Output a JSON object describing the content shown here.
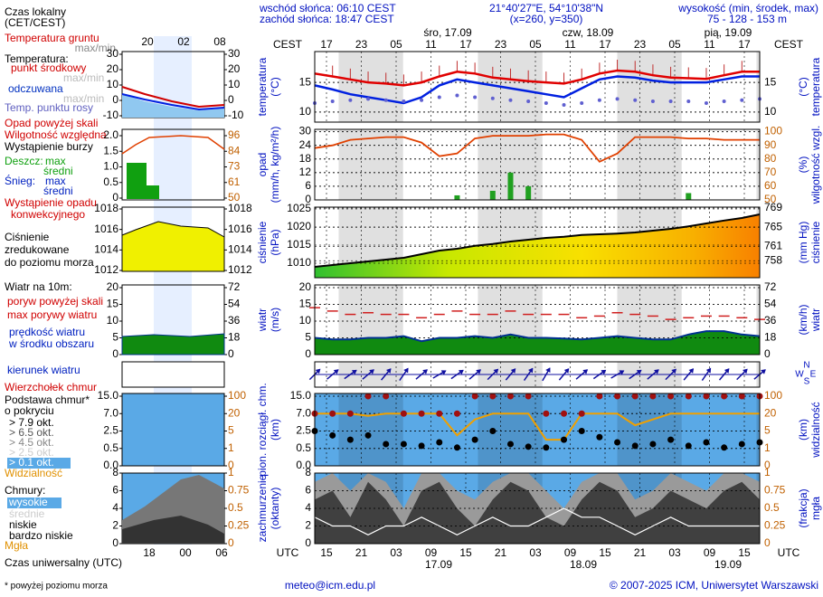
{
  "header": {
    "sunrise": "wschód słońca: 06:10 CEST",
    "sunset": "zachód słońca: 18:47 CEST",
    "coords": "21°40'27\"E, 54°10'38\"N",
    "grid_point": "(x=260,  y=350)",
    "elevation_title": "wysokość (min, środek, max)",
    "elevation": "75 - 128 - 153 m"
  },
  "time": {
    "local_label": "CEST",
    "utc_label": "UTC",
    "local_ticks": [
      "17",
      "23",
      "05",
      "11",
      "17",
      "23",
      "05",
      "11",
      "17",
      "23",
      "05",
      "11",
      "17"
    ],
    "utc_ticks": [
      "15",
      "21",
      "03",
      "09",
      "15",
      "21",
      "03",
      "09",
      "15",
      "21",
      "03",
      "09",
      "15"
    ],
    "local_dates": [
      "śro, 17.09",
      "czw, 18.09",
      "pią, 19.09"
    ],
    "utc_dates": [
      "17.09",
      "18.09",
      "19.09"
    ]
  },
  "legend": [
    "Czas lokalny",
    "(CET/CEST)",
    "Temperatura gruntu",
    "max/min",
    "Temperatura:",
    "punkt środkowy",
    "max/min",
    "odczuwana",
    "max/min",
    "Temp. punktu rosy",
    "Opad powyżej skali",
    "Wilgotność względna",
    "Wystąpienie burzy",
    "Deszcz:",
    "max",
    "średni",
    "Śnieg:",
    "max",
    "średni",
    "Wystąpienie opadu",
    "konwekcyjnego",
    "Ciśnienie",
    "zredukowane",
    "do poziomu morza",
    "Wiatr na 10m:",
    "poryw powyżej skali",
    "max porywy wiatru",
    "prędkość wiatru",
    "w środku obszaru",
    "kierunek wiatru",
    "Wierzchołek chmur",
    "Podstawa chmur*",
    "o pokryciu",
    "> 7.9 okt.",
    "> 6.5 okt.",
    "> 4.5 okt.",
    "> 2.5 okt.",
    "> 0.1 okt.",
    "Widzialność",
    "Chmury:",
    "wysokie",
    "średnie",
    "niskie",
    "bardzo niskie",
    "Mgła",
    "Czas uniwersalny (UTC)"
  ],
  "mini": {
    "local_ticks": [
      "20",
      "02",
      "08"
    ],
    "utc_ticks": [
      "18",
      "00",
      "06"
    ],
    "axes": {
      "temperature": {
        "left": [
          30,
          20,
          10,
          0,
          -10
        ],
        "right": [
          30,
          20,
          10,
          0,
          -10
        ]
      },
      "precipitation": {
        "left": [
          {
            "value": 2,
            "label": "2.0"
          },
          1.5,
          {
            "value": 1,
            "label": "1.0"
          },
          0.5,
          0
        ],
        "right": [
          96,
          84,
          73,
          61,
          50
        ]
      },
      "pressure": {
        "left": [
          1018,
          1016,
          1014,
          1012
        ],
        "right": [
          1018,
          1016,
          1014,
          1012
        ]
      },
      "wind": {
        "left": [
          20,
          15,
          10,
          5,
          0
        ],
        "right": [
          72,
          54,
          36,
          18,
          0
        ]
      },
      "cloud_height": {
        "left": [
          {
            "value": 15,
            "label": "15.0"
          },
          {
            "value": 7,
            "label": "7.0"
          },
          2.5,
          0.5,
          {
            "value": 0,
            "label": "0.0"
          }
        ],
        "right": [
          100,
          20,
          5,
          1,
          0
        ]
      },
      "cloud_cover": {
        "left": [
          8,
          6,
          4,
          2,
          0
        ],
        "right": [
          1,
          0.75,
          0.5,
          0.25,
          0
        ]
      }
    }
  },
  "panels": {
    "temperature": {
      "title": "temperatura",
      "unit": "(°C)",
      "ylim": [
        8.3,
        20.2
      ],
      "yticks": [
        10,
        15
      ],
      "y2ticks": [
        10,
        15
      ],
      "lines": {
        "max": {
          "color": "#e00000",
          "values": [
            16.5,
            16,
            15.5,
            15,
            14.8,
            14.5,
            15,
            16,
            16.8,
            16.5,
            15.8,
            15.5,
            15.2,
            15,
            14.8,
            15.5,
            16.5,
            17,
            16.8,
            16.2,
            15.8,
            15.7,
            15.6,
            16.2,
            16.8,
            16.8
          ]
        },
        "mean": {
          "color": "#0020e0",
          "values": [
            14.5,
            13.8,
            13,
            12.5,
            12,
            11.5,
            12.5,
            14.5,
            15.5,
            15,
            14.5,
            14,
            13.5,
            13,
            12.5,
            14,
            15.5,
            16,
            15.8,
            15.3,
            15,
            15,
            15,
            15.5,
            16,
            16
          ]
        },
        "dew_point": {
          "color": "#6060d0",
          "values": [
            11.5,
            11.8,
            12,
            12.2,
            12,
            11.8,
            12,
            12.5,
            12.8,
            12.5,
            12.3,
            12,
            11.8,
            11.5,
            11.2,
            11.5,
            12,
            12.2,
            12,
            11.8,
            11.8,
            11.8,
            11.5,
            11.8,
            12,
            12.2
          ]
        }
      }
    },
    "precipitation": {
      "title": "opad",
      "unit": "(mm/h, kg/m²/h)",
      "title2": "wilgotność wzgl.",
      "unit2": "(%)",
      "ylim": [
        0,
        31
      ],
      "yticks": [
        0,
        6,
        12,
        18,
        24,
        30
      ],
      "y2lim": [
        50,
        101.7
      ],
      "y2ticks": [
        50,
        60,
        70,
        80,
        90,
        100
      ],
      "bars": {
        "color": "#20a020",
        "values": [
          0,
          0,
          0,
          0,
          0,
          0,
          0,
          0,
          2,
          0,
          4,
          12,
          6,
          0,
          0,
          0,
          0,
          0,
          0,
          0,
          0,
          3,
          0,
          0,
          0,
          0
        ]
      },
      "humidity": {
        "color": "#e04000",
        "values": [
          88,
          90,
          94,
          95,
          96,
          96,
          92,
          82,
          84,
          95,
          97,
          97,
          97,
          98,
          98,
          94,
          78,
          84,
          96,
          96,
          96,
          95,
          95,
          94,
          94,
          94
        ]
      }
    },
    "pressure": {
      "title": "ciśnienie",
      "unit": "(hPa)",
      "title2": "ciśnienie",
      "unit2": "(mm Hg)",
      "ylim": [
        1006,
        1025.5
      ],
      "yticks": [
        1010,
        1015,
        1020,
        1025
      ],
      "y2lim": [
        754.5,
        769.2
      ],
      "y2ticks": [
        758,
        761,
        765,
        769
      ],
      "line": {
        "color": "#000000",
        "values": [
          1009,
          1009.5,
          1010,
          1010.5,
          1011,
          1011.5,
          1012.5,
          1013.5,
          1014,
          1014.8,
          1015.3,
          1016,
          1016.5,
          1017,
          1017.3,
          1017.8,
          1018,
          1018.2,
          1018.5,
          1019,
          1019.5,
          1020.2,
          1021,
          1021.8,
          1022.5,
          1023.5
        ]
      }
    },
    "wind": {
      "title": "wiatr",
      "unit": "(m/s)",
      "title2": "wiatr",
      "unit2": "(km/h)",
      "ylim": [
        0,
        20.8
      ],
      "yticks": [
        0,
        5,
        10,
        15,
        20
      ],
      "y2lim": [
        0,
        74.9
      ],
      "y2ticks": [
        0,
        18,
        36,
        54,
        72
      ],
      "speed": {
        "color": "#003090",
        "fill": "#108a10",
        "values": [
          5,
          4.5,
          4.5,
          5,
          5,
          5.5,
          4,
          5,
          5,
          5.5,
          5,
          6,
          5,
          5,
          4.8,
          4.5,
          5,
          5.5,
          5,
          4.5,
          4.5,
          6,
          7,
          7,
          6,
          5.5
        ]
      },
      "gust": {
        "color": "#d02020",
        "values": [
          14,
          13,
          12,
          12.5,
          12,
          12,
          11,
          12,
          13,
          12,
          12,
          13,
          12,
          12,
          12,
          11,
          11.5,
          12.5,
          12,
          11.5,
          10.5,
          11,
          11.5,
          11.5,
          11,
          10.5
        ]
      }
    },
    "direction": {
      "compass": [
        "N",
        "W",
        "S",
        "E"
      ],
      "color": "#1010a0",
      "values": [
        225,
        230,
        235,
        230,
        220,
        215,
        230,
        240,
        235,
        230,
        225,
        220,
        215,
        210,
        220,
        230,
        235,
        240,
        235,
        230,
        225,
        220,
        215,
        220,
        225,
        230
      ]
    },
    "cloud_height": {
      "title": "pion. rozciągł. chm.",
      "unit": "(km)",
      "title2": "widzialność",
      "unit2": "(km)",
      "yticks": [
        {
          "value": 15,
          "label": "15.0"
        },
        {
          "value": 7,
          "label": "7.0"
        },
        2.5,
        0.5,
        {
          "value": 0,
          "label": "0.0"
        }
      ],
      "y2ticks": [
        100,
        20,
        5,
        1,
        0
      ],
      "cloud_top": {
        "color": "#a01010",
        "values": [
          7,
          7,
          7,
          15,
          15,
          7,
          7,
          7,
          7,
          15,
          15,
          15,
          15,
          7,
          7,
          7,
          15,
          15,
          15,
          15,
          15,
          15,
          15,
          15,
          15,
          15
        ]
      },
      "cloud_base": {
        "color": "#000000",
        "values": [
          2.5,
          2,
          1.5,
          2,
          1,
          1,
          0.8,
          1.2,
          0.6,
          1.5,
          2.5,
          1,
          0.7,
          0.6,
          1.5,
          2.5,
          1.8,
          1.2,
          0.8,
          1,
          1.5,
          0.8,
          1.2,
          0.6,
          1,
          1.2
        ]
      },
      "visibility": {
        "color": "#f0a000",
        "values": [
          20,
          20,
          20,
          18,
          20,
          20,
          20,
          20,
          4,
          15,
          20,
          20,
          20,
          3,
          3,
          20,
          20,
          20,
          10,
          15,
          20,
          20,
          20,
          20,
          20,
          20
        ]
      }
    },
    "cloud_cover": {
      "title": "zachmurzenie",
      "unit": "(oktanty)",
      "title2": "mgła",
      "unit2": "(frakcja)",
      "ylim": [
        0,
        8
      ],
      "yticks": [
        0,
        2,
        4,
        6,
        8
      ],
      "y2lim": [
        0,
        1
      ],
      "y2ticks": [
        0,
        0.25,
        0.5,
        0.75,
        1
      ],
      "middle": {
        "color": "#9a9a9a",
        "values": [
          7,
          8,
          6,
          8,
          7,
          4,
          8,
          8,
          6,
          5,
          7,
          8,
          8,
          6,
          4,
          7,
          8,
          8,
          5,
          6,
          8,
          7,
          6,
          8,
          8,
          7
        ]
      },
      "low": {
        "color": "#404040",
        "values": [
          5,
          6,
          3,
          7,
          5,
          2,
          6,
          7,
          4,
          2,
          5,
          7,
          6,
          3,
          2,
          5,
          7,
          6,
          3,
          4,
          6,
          5,
          4,
          6,
          7,
          5
        ]
      },
      "high": {
        "color": "#ffffff",
        "values": [
          3,
          2,
          2,
          1,
          2,
          2,
          3,
          2,
          1,
          2,
          3,
          2,
          2,
          3,
          4,
          3,
          3,
          2,
          1,
          2,
          3,
          2,
          2,
          2,
          2,
          2
        ]
      }
    }
  },
  "footer": {
    "note": "* powyżej poziomu morza",
    "email": "meteo@icm.edu.pl",
    "copyright": "© 2007-2025 ICM, Uniwersytet Warszawski"
  }
}
